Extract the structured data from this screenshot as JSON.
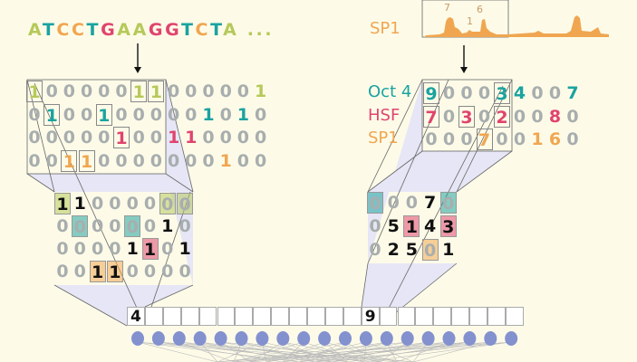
{
  "colors": {
    "A": "#b6c95a",
    "T": "#1aa3a0",
    "C": "#f0a650",
    "G": "#e0446e",
    "zero": "#a8aeae",
    "text": "#111111",
    "panel": "#e6e6f6",
    "background": "#fdfbe8"
  },
  "sequence": {
    "bases": [
      "A",
      "T",
      "C",
      "C",
      "T",
      "G",
      "A",
      "A",
      "G",
      "G",
      "T",
      "C",
      "T",
      "A"
    ],
    "ellipsis": "..."
  },
  "onehot": {
    "row_colors": [
      "A",
      "T",
      "G",
      "C"
    ],
    "rows": [
      [
        1,
        0,
        0,
        0,
        0,
        0,
        1,
        1,
        0,
        0,
        0,
        0,
        0,
        1
      ],
      [
        0,
        1,
        0,
        0,
        1,
        0,
        0,
        0,
        0,
        0,
        1,
        0,
        1,
        0
      ],
      [
        0,
        0,
        0,
        0,
        0,
        1,
        0,
        0,
        1,
        1,
        0,
        0,
        0,
        0
      ],
      [
        0,
        0,
        1,
        1,
        0,
        0,
        0,
        0,
        0,
        0,
        0,
        1,
        0,
        0
      ]
    ]
  },
  "filter_left": {
    "rows": [
      [
        1,
        1,
        0,
        0,
        0,
        0,
        0,
        0
      ],
      [
        0,
        0,
        0,
        0,
        0,
        0,
        1,
        0
      ],
      [
        0,
        0,
        0,
        0,
        1,
        1,
        0,
        1
      ],
      [
        0,
        0,
        1,
        1,
        0,
        0,
        0,
        0
      ]
    ],
    "highlights": [
      [
        0,
        6,
        7
      ],
      [
        1,
        4
      ],
      [
        5
      ],
      [
        2,
        3
      ]
    ]
  },
  "chip": {
    "track_label": "SP1",
    "peak_labels": [
      "7",
      "1",
      "6"
    ],
    "factors": [
      {
        "name": "Oct 4",
        "color": "T",
        "values": [
          9,
          0,
          0,
          0,
          3,
          4,
          0,
          0,
          7
        ],
        "boxed": [
          0,
          4
        ]
      },
      {
        "name": "HSF",
        "color": "G",
        "values": [
          7,
          0,
          3,
          0,
          2,
          0,
          0,
          8,
          0
        ],
        "boxed": [
          0,
          2,
          4
        ]
      },
      {
        "name": "SP1",
        "color": "C",
        "values": [
          0,
          0,
          0,
          7,
          0,
          0,
          1,
          6,
          0
        ],
        "boxed": [
          3
        ]
      }
    ]
  },
  "filter_right": {
    "rows": [
      [
        0,
        0,
        0,
        7,
        0
      ],
      [
        0,
        5,
        1,
        4,
        3
      ],
      [
        0,
        2,
        5,
        0,
        1
      ]
    ],
    "highlights": [
      [
        0,
        4
      ],
      [
        2,
        4
      ],
      [
        3
      ]
    ]
  },
  "feature_map": {
    "cells": [
      "4",
      "",
      "",
      "",
      "",
      "",
      "",
      "",
      "",
      "",
      "",
      "",
      "",
      "9",
      "",
      "",
      "",
      "",
      "",
      "",
      "",
      ""
    ]
  },
  "hidden_layer": {
    "nodes": 19,
    "node_color": "#8391cf"
  }
}
